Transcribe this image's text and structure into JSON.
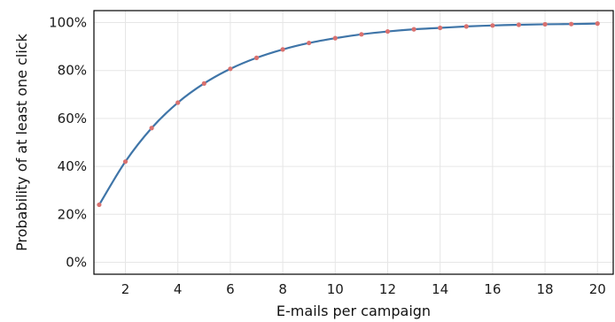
{
  "chart_data": {
    "type": "line",
    "title": "",
    "xlabel": "E-mails per campaign",
    "ylabel": "Probability of at least one click",
    "xlim": [
      0.8,
      20.6
    ],
    "ylim": [
      -0.05,
      1.05
    ],
    "x_ticks": [
      2,
      4,
      6,
      8,
      10,
      12,
      14,
      16,
      18,
      20
    ],
    "x_tick_labels": [
      "2",
      "4",
      "6",
      "8",
      "10",
      "12",
      "14",
      "16",
      "18",
      "20"
    ],
    "y_ticks": [
      0,
      0.2,
      0.4,
      0.6,
      0.8,
      1.0
    ],
    "y_tick_labels": [
      "0%",
      "20%",
      "40%",
      "60%",
      "80%",
      "100%"
    ],
    "grid": true,
    "legend": "none",
    "colors": {
      "line": "#3f75a8",
      "marker": "#d9716f",
      "grid": "#e6e6e6",
      "frame": "#000000"
    },
    "series": [
      {
        "x": [
          1,
          2,
          3,
          4,
          5,
          6,
          7,
          8,
          9,
          10,
          11,
          12,
          13,
          14,
          15,
          16,
          17,
          18,
          19,
          20
        ],
        "y": [
          0.24,
          0.42,
          0.56,
          0.666,
          0.746,
          0.807,
          0.853,
          0.888,
          0.915,
          0.935,
          0.951,
          0.963,
          0.972,
          0.978,
          0.984,
          0.988,
          0.991,
          0.993,
          0.994,
          0.996
        ]
      }
    ]
  }
}
